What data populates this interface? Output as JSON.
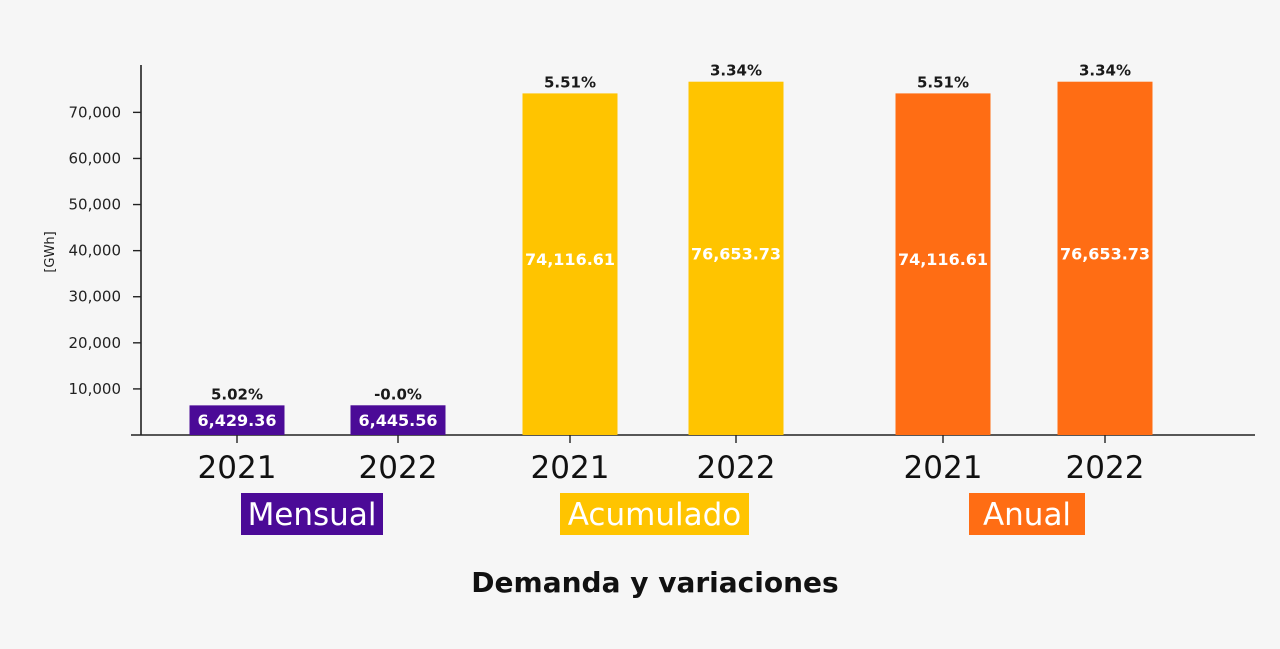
{
  "chart_data": {
    "type": "bar",
    "title": "Demanda y variaciones",
    "ylabel": "[GWh]",
    "ylim": [
      0,
      80000
    ],
    "yticks": [
      "10,000",
      "20,000",
      "30,000",
      "40,000",
      "50,000",
      "60,000",
      "70,000"
    ],
    "grid": false,
    "groups": [
      {
        "name": "Mensual",
        "color": "#4b0a97",
        "categories": [
          "2021",
          "2022"
        ],
        "values": [
          6429.36,
          6445.56
        ],
        "value_labels": [
          "6,429.36",
          "6,445.56"
        ],
        "variations": [
          "5.02%",
          "-0.0%"
        ]
      },
      {
        "name": "Acumulado",
        "color": "#ffc400",
        "categories": [
          "2021",
          "2022"
        ],
        "values": [
          74116.61,
          76653.73
        ],
        "value_labels": [
          "74,116.61",
          "76,653.73"
        ],
        "variations": [
          "5.51%",
          "3.34%"
        ]
      },
      {
        "name": "Anual",
        "color": "#ff6d14",
        "categories": [
          "2021",
          "2022"
        ],
        "values": [
          74116.61,
          76653.73
        ],
        "value_labels": [
          "74,116.61",
          "76,653.73"
        ],
        "variations": [
          "5.51%",
          "3.34%"
        ]
      }
    ]
  }
}
